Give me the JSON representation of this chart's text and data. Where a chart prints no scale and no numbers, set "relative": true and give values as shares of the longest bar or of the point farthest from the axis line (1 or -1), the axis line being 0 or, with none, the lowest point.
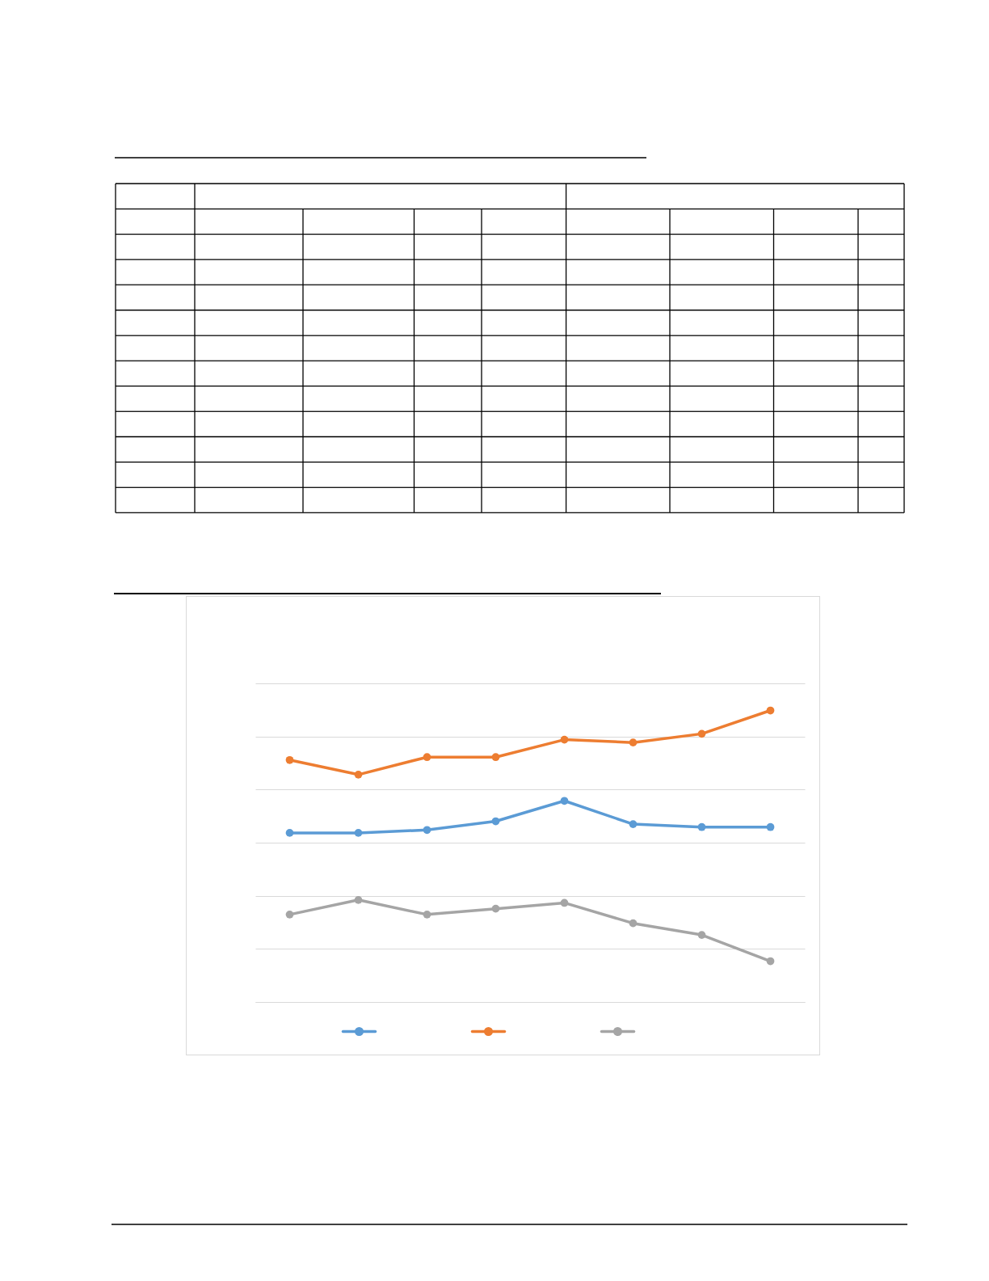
{
  "chart_data": {
    "type": "line",
    "relative": true,
    "categories": [
      null,
      null,
      null,
      null,
      null,
      null,
      null,
      null
    ],
    "series": [
      {
        "color": "#5b9bd5",
        "values": [
          0.58,
          0.58,
          0.59,
          0.62,
          0.69,
          0.61,
          0.6,
          0.6
        ]
      },
      {
        "color": "#ed7d31",
        "values": [
          0.83,
          0.78,
          0.84,
          0.84,
          0.9,
          0.89,
          0.92,
          1
        ]
      },
      {
        "color": "#a5a5a5",
        "values": [
          0.3,
          0.35,
          0.3,
          0.32,
          0.34,
          0.27,
          0.23,
          0.14
        ]
      }
    ],
    "grid": "y",
    "marker": "circle",
    "line_style": "solid"
  }
}
